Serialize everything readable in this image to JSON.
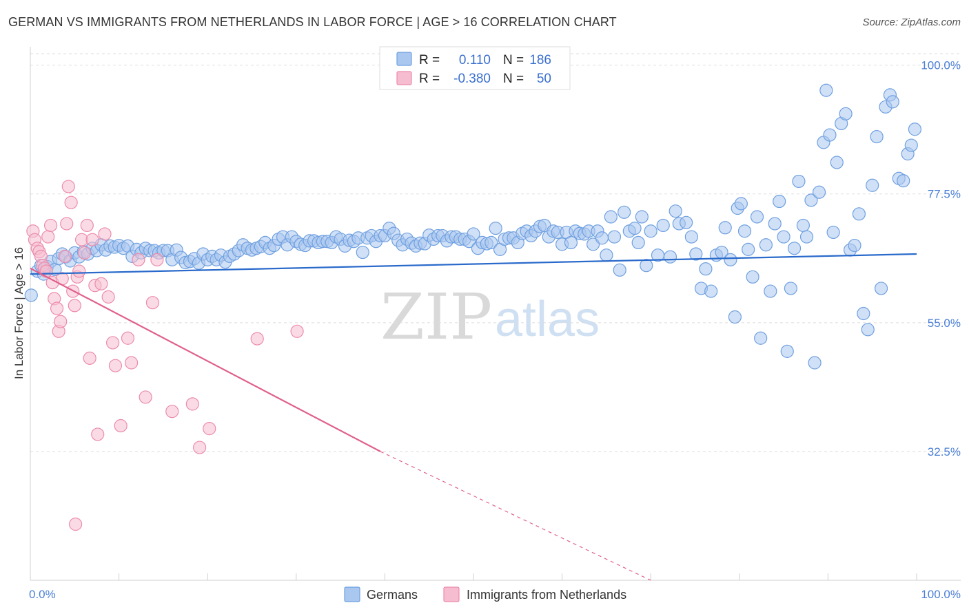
{
  "header": {
    "title": "GERMAN VS IMMIGRANTS FROM NETHERLANDS IN LABOR FORCE | AGE > 16 CORRELATION CHART",
    "source": "Source: ZipAtlas.com"
  },
  "watermark": {
    "zip": "ZIP",
    "atlas": "atlas"
  },
  "colors": {
    "german": "#6fa0e0",
    "german_fill": "#a9c7ef",
    "german_line": "#2a6acb",
    "netherlands": "#ec8bab",
    "netherlands_fill": "#f6bdd0",
    "netherlands_line": "#e0608c",
    "grid": "#dddddd",
    "tick_label": "#4a7fd6"
  },
  "legend": {
    "r_label": "R =",
    "n_label": "N =",
    "rows": [
      {
        "r": "0.110",
        "n": "186"
      },
      {
        "r": "-0.380",
        "n": "50"
      }
    ]
  },
  "chart_data": {
    "type": "scatter",
    "xlabel": "",
    "ylabel": "In Labor Force | Age > 16",
    "xlim": [
      0,
      100
    ],
    "ylim": [
      10,
      102
    ],
    "x_tick_labels": [
      "0.0%",
      "100.0%"
    ],
    "y_ticks": [
      {
        "value": 32.5,
        "label": "32.5%"
      },
      {
        "value": 55.0,
        "label": "55.0%"
      },
      {
        "value": 77.5,
        "label": "77.5%"
      },
      {
        "value": 100.0,
        "label": "100.0%"
      }
    ],
    "grid": "horizontal dashed",
    "series": [
      {
        "name": "Germans",
        "r": 0.11,
        "n": 186,
        "trend": {
          "x": [
            0,
            100
          ],
          "y": [
            63.5,
            67.0
          ]
        },
        "points": [
          [
            0.1,
            59.8
          ],
          [
            0.8,
            64.0
          ],
          [
            1.2,
            65.0
          ],
          [
            1.5,
            63.5
          ],
          [
            1.9,
            64.8
          ],
          [
            2.3,
            65.7
          ],
          [
            2.8,
            64.3
          ],
          [
            3.2,
            66.2
          ],
          [
            3.6,
            67.0
          ],
          [
            4.0,
            66.5
          ],
          [
            4.5,
            65.8
          ],
          [
            5.0,
            67.2
          ],
          [
            5.5,
            66.5
          ],
          [
            6.0,
            67.4
          ],
          [
            6.5,
            67.0
          ],
          [
            7.0,
            68.0
          ],
          [
            7.5,
            67.6
          ],
          [
            8.0,
            68.6
          ],
          [
            8.5,
            67.7
          ],
          [
            9.0,
            68.4
          ],
          [
            9.5,
            68.2
          ],
          [
            10.0,
            68.5
          ],
          [
            10.5,
            68.0
          ],
          [
            11.0,
            68.4
          ],
          [
            11.5,
            66.6
          ],
          [
            12.0,
            67.8
          ],
          [
            12.5,
            67.2
          ],
          [
            13.0,
            68.0
          ],
          [
            13.5,
            67.6
          ],
          [
            14.0,
            67.6
          ],
          [
            14.5,
            67.2
          ],
          [
            15.0,
            67.6
          ],
          [
            15.5,
            67.6
          ],
          [
            16.0,
            66.0
          ],
          [
            16.5,
            67.7
          ],
          [
            17.0,
            66.4
          ],
          [
            17.5,
            65.5
          ],
          [
            18.0,
            65.7
          ],
          [
            18.5,
            66.2
          ],
          [
            19.0,
            65.4
          ],
          [
            19.5,
            67.0
          ],
          [
            20.0,
            66.0
          ],
          [
            20.5,
            66.6
          ],
          [
            21.0,
            66.0
          ],
          [
            21.5,
            66.8
          ],
          [
            22.0,
            65.6
          ],
          [
            22.5,
            66.6
          ],
          [
            23.0,
            67.0
          ],
          [
            23.5,
            67.6
          ],
          [
            24.0,
            68.6
          ],
          [
            24.5,
            68.0
          ],
          [
            25.0,
            67.7
          ],
          [
            25.5,
            68.0
          ],
          [
            26.0,
            68.3
          ],
          [
            26.5,
            69.0
          ],
          [
            27.0,
            68.0
          ],
          [
            27.5,
            68.5
          ],
          [
            28.0,
            69.6
          ],
          [
            28.5,
            70.0
          ],
          [
            29.0,
            68.6
          ],
          [
            29.5,
            70.0
          ],
          [
            30.0,
            69.2
          ],
          [
            30.5,
            68.7
          ],
          [
            31.0,
            68.5
          ],
          [
            31.5,
            69.3
          ],
          [
            32.0,
            69.3
          ],
          [
            32.5,
            69.0
          ],
          [
            33.0,
            69.2
          ],
          [
            33.5,
            69.2
          ],
          [
            34.0,
            69.0
          ],
          [
            34.5,
            70.0
          ],
          [
            35.0,
            69.6
          ],
          [
            35.5,
            68.4
          ],
          [
            36.0,
            69.4
          ],
          [
            36.5,
            69.2
          ],
          [
            37.0,
            69.8
          ],
          [
            37.5,
            67.3
          ],
          [
            38.0,
            69.8
          ],
          [
            38.5,
            70.2
          ],
          [
            39.0,
            69.2
          ],
          [
            39.5,
            70.2
          ],
          [
            40.0,
            70.2
          ],
          [
            40.5,
            71.5
          ],
          [
            41.0,
            70.6
          ],
          [
            41.5,
            69.4
          ],
          [
            42.0,
            68.6
          ],
          [
            42.5,
            69.6
          ],
          [
            43.0,
            68.9
          ],
          [
            43.5,
            68.4
          ],
          [
            44.0,
            68.9
          ],
          [
            44.5,
            68.8
          ],
          [
            45.0,
            70.3
          ],
          [
            45.5,
            69.6
          ],
          [
            46.0,
            70.2
          ],
          [
            46.5,
            70.2
          ],
          [
            47.0,
            69.3
          ],
          [
            47.5,
            70.0
          ],
          [
            48.0,
            70.0
          ],
          [
            48.5,
            69.6
          ],
          [
            49.0,
            69.6
          ],
          [
            49.5,
            69.2
          ],
          [
            50.0,
            70.5
          ],
          [
            50.5,
            68.0
          ],
          [
            51.0,
            69.0
          ],
          [
            51.5,
            68.8
          ],
          [
            52.0,
            69.0
          ],
          [
            52.5,
            71.5
          ],
          [
            53.0,
            67.8
          ],
          [
            53.5,
            69.6
          ],
          [
            54.0,
            69.8
          ],
          [
            54.5,
            69.8
          ],
          [
            55.0,
            69.0
          ],
          [
            55.5,
            70.6
          ],
          [
            56.0,
            71.0
          ],
          [
            56.5,
            70.2
          ],
          [
            57.0,
            71.0
          ],
          [
            57.5,
            71.8
          ],
          [
            58.0,
            72.0
          ],
          [
            58.5,
            70.0
          ],
          [
            59.0,
            71.0
          ],
          [
            59.5,
            70.8
          ],
          [
            60.0,
            68.7
          ],
          [
            60.5,
            70.8
          ],
          [
            61.0,
            69.0
          ],
          [
            61.5,
            71.0
          ],
          [
            62.0,
            70.6
          ],
          [
            62.5,
            70.5
          ],
          [
            63.0,
            71.0
          ],
          [
            63.5,
            68.7
          ],
          [
            64.0,
            71.0
          ],
          [
            64.5,
            69.8
          ],
          [
            65.0,
            66.8
          ],
          [
            65.5,
            73.5
          ],
          [
            65.9,
            70.0
          ],
          [
            66.5,
            64.2
          ],
          [
            67.0,
            74.3
          ],
          [
            67.6,
            71.0
          ],
          [
            68.2,
            71.5
          ],
          [
            68.6,
            69.0
          ],
          [
            69.0,
            73.5
          ],
          [
            69.5,
            65.0
          ],
          [
            70.0,
            71.0
          ],
          [
            70.8,
            66.8
          ],
          [
            71.4,
            72.0
          ],
          [
            72.2,
            66.5
          ],
          [
            72.8,
            74.5
          ],
          [
            73.2,
            72.3
          ],
          [
            74.0,
            72.5
          ],
          [
            74.6,
            70.0
          ],
          [
            75.1,
            67.0
          ],
          [
            75.7,
            61.0
          ],
          [
            76.2,
            64.4
          ],
          [
            76.8,
            60.5
          ],
          [
            77.4,
            66.8
          ],
          [
            78.0,
            67.3
          ],
          [
            78.4,
            71.6
          ],
          [
            79.0,
            66.0
          ],
          [
            79.5,
            56.0
          ],
          [
            79.8,
            75.0
          ],
          [
            80.2,
            75.8
          ],
          [
            80.6,
            71.0
          ],
          [
            81.0,
            67.8
          ],
          [
            81.5,
            63.0
          ],
          [
            82.0,
            73.5
          ],
          [
            82.4,
            52.3
          ],
          [
            83.0,
            68.6
          ],
          [
            83.5,
            60.5
          ],
          [
            84.0,
            72.3
          ],
          [
            84.5,
            76.2
          ],
          [
            85.0,
            70.0
          ],
          [
            85.4,
            50.0
          ],
          [
            85.8,
            61.0
          ],
          [
            86.2,
            68.0
          ],
          [
            86.7,
            79.7
          ],
          [
            87.2,
            72.0
          ],
          [
            87.6,
            70.0
          ],
          [
            88.1,
            76.4
          ],
          [
            88.5,
            48.0
          ],
          [
            89.0,
            77.8
          ],
          [
            89.5,
            86.5
          ],
          [
            89.8,
            95.6
          ],
          [
            90.2,
            87.8
          ],
          [
            90.6,
            70.8
          ],
          [
            91.0,
            83.0
          ],
          [
            91.5,
            89.8
          ],
          [
            92.0,
            91.5
          ],
          [
            92.5,
            67.7
          ],
          [
            93.0,
            68.5
          ],
          [
            93.5,
            74.0
          ],
          [
            94.0,
            56.6
          ],
          [
            94.5,
            53.8
          ],
          [
            95.0,
            79.0
          ],
          [
            95.5,
            87.5
          ],
          [
            96.0,
            61.0
          ],
          [
            96.5,
            92.7
          ],
          [
            97.0,
            94.8
          ],
          [
            97.3,
            93.6
          ],
          [
            98.0,
            80.2
          ],
          [
            98.5,
            79.8
          ],
          [
            99.0,
            84.5
          ],
          [
            99.4,
            86.0
          ],
          [
            99.8,
            88.8
          ]
        ]
      },
      {
        "name": "Immigrants from Netherlands",
        "r": -0.38,
        "n": 50,
        "trend": {
          "x": [
            0,
            39.5
          ],
          "y": [
            64.5,
            32.5
          ],
          "dashed_extension": {
            "x": [
              39.5,
              70
            ],
            "y": [
              32.5,
              10
            ]
          }
        },
        "points": [
          [
            0.3,
            71.0
          ],
          [
            0.5,
            69.5
          ],
          [
            0.8,
            68.0
          ],
          [
            1.0,
            67.4
          ],
          [
            1.2,
            66.6
          ],
          [
            1.4,
            65.0
          ],
          [
            1.6,
            64.5
          ],
          [
            1.8,
            64.0
          ],
          [
            2.0,
            70.0
          ],
          [
            2.3,
            72.0
          ],
          [
            2.5,
            62.0
          ],
          [
            2.7,
            59.2
          ],
          [
            3.0,
            57.5
          ],
          [
            3.2,
            53.5
          ],
          [
            3.4,
            55.2
          ],
          [
            3.6,
            62.7
          ],
          [
            3.9,
            66.6
          ],
          [
            4.1,
            72.3
          ],
          [
            4.3,
            78.8
          ],
          [
            4.6,
            76.0
          ],
          [
            4.8,
            60.5
          ],
          [
            5.0,
            58.0
          ],
          [
            5.3,
            63.0
          ],
          [
            5.5,
            64.0
          ],
          [
            5.8,
            69.5
          ],
          [
            6.1,
            67.2
          ],
          [
            6.4,
            72.0
          ],
          [
            6.7,
            48.8
          ],
          [
            7.0,
            69.5
          ],
          [
            7.3,
            61.5
          ],
          [
            7.6,
            35.5
          ],
          [
            8.0,
            61.8
          ],
          [
            8.4,
            70.5
          ],
          [
            8.8,
            59.5
          ],
          [
            9.3,
            51.5
          ],
          [
            9.6,
            47.5
          ],
          [
            10.2,
            37.0
          ],
          [
            11.0,
            52.3
          ],
          [
            11.4,
            48.0
          ],
          [
            12.2,
            66.0
          ],
          [
            13.0,
            42.0
          ],
          [
            13.8,
            58.5
          ],
          [
            14.3,
            66.0
          ],
          [
            16.0,
            39.5
          ],
          [
            18.3,
            40.8
          ],
          [
            19.1,
            33.2
          ],
          [
            20.2,
            36.5
          ],
          [
            25.6,
            52.2
          ],
          [
            30.1,
            53.5
          ],
          [
            5.1,
            19.8
          ]
        ]
      }
    ],
    "bottom_legend": [
      "Germans",
      "Immigrants from Netherlands"
    ]
  }
}
